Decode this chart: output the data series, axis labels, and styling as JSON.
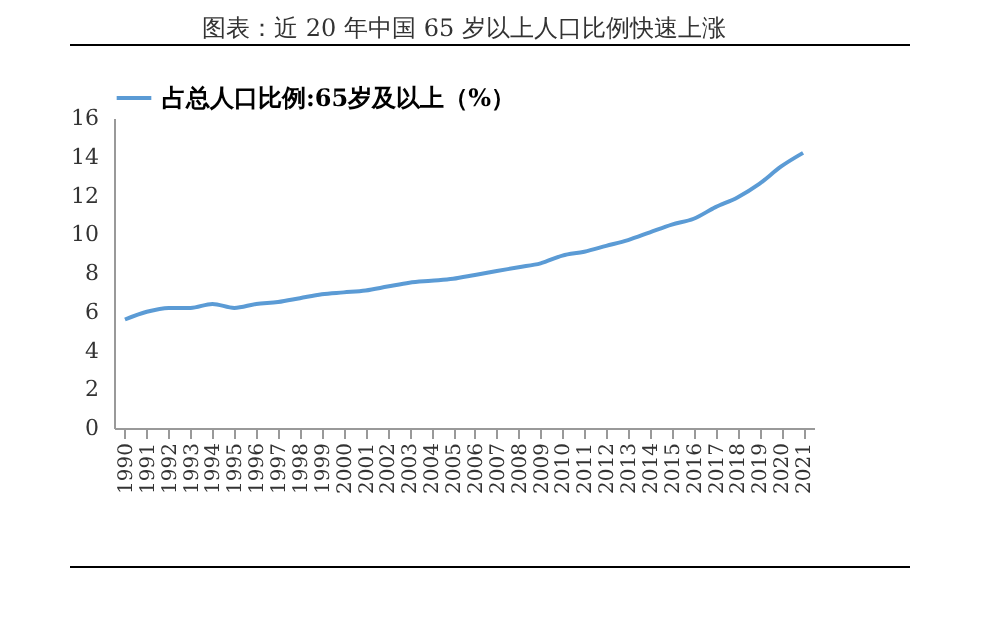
{
  "chart_data": {
    "type": "line",
    "title": "图表：近 20 年中国 65 岁以上人口比例快速上涨",
    "categories": [
      "1990",
      "1991",
      "1992",
      "1993",
      "1994",
      "1995",
      "1996",
      "1997",
      "1998",
      "1999",
      "2000",
      "2001",
      "2002",
      "2003",
      "2004",
      "2005",
      "2006",
      "2007",
      "2008",
      "2009",
      "2010",
      "2011",
      "2012",
      "2013",
      "2014",
      "2015",
      "2016",
      "2017",
      "2018",
      "2019",
      "2020",
      "2021"
    ],
    "series": [
      {
        "name": "占总人口比例:65岁及以上（%）",
        "color": "#5b9bd5",
        "values": [
          5.6,
          6.0,
          6.2,
          6.2,
          6.4,
          6.2,
          6.4,
          6.5,
          6.7,
          6.9,
          7.0,
          7.1,
          7.3,
          7.5,
          7.6,
          7.7,
          7.9,
          8.1,
          8.3,
          8.5,
          8.9,
          9.1,
          9.4,
          9.7,
          10.1,
          10.5,
          10.8,
          11.4,
          11.9,
          12.6,
          13.5,
          14.2
        ]
      }
    ],
    "ylim": [
      0,
      16
    ],
    "yticks": [
      0,
      2,
      4,
      6,
      8,
      10,
      12,
      14,
      16
    ],
    "grid": false,
    "legend": "top",
    "marker": "none",
    "line_style": "solid"
  }
}
